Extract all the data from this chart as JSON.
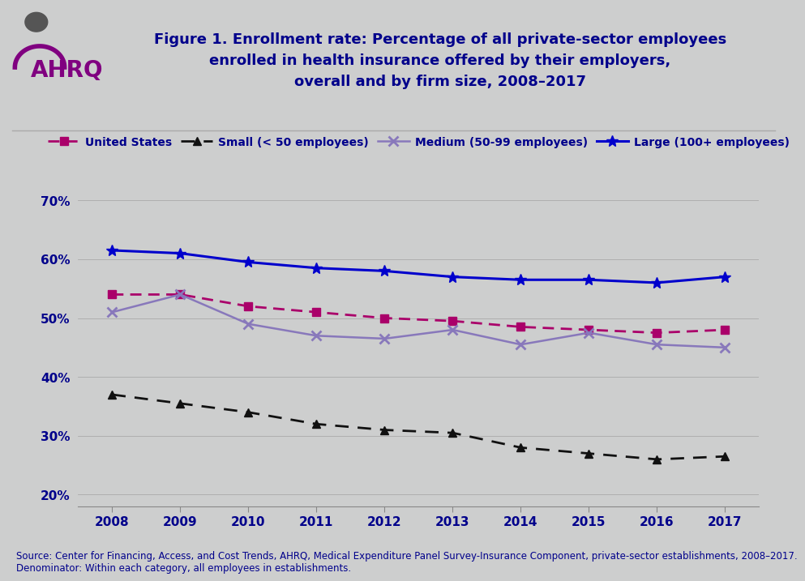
{
  "years": [
    2008,
    2009,
    2010,
    2011,
    2012,
    2013,
    2014,
    2015,
    2016,
    2017
  ],
  "united_states": [
    54.0,
    54.0,
    52.0,
    51.0,
    50.0,
    49.5,
    48.5,
    48.0,
    47.5,
    48.0
  ],
  "small": [
    37.0,
    35.5,
    34.0,
    32.0,
    31.0,
    30.5,
    28.0,
    27.0,
    26.0,
    26.5
  ],
  "medium": [
    51.0,
    54.0,
    49.0,
    47.0,
    46.5,
    48.0,
    45.5,
    47.5,
    45.5,
    45.0
  ],
  "large": [
    61.5,
    61.0,
    59.5,
    58.5,
    58.0,
    57.0,
    56.5,
    56.5,
    56.0,
    57.0
  ],
  "colors": {
    "united_states": "#AA006A",
    "small": "#111111",
    "medium": "#8878BB",
    "large": "#0000CC"
  },
  "title_line1": "Figure 1. Enrollment rate: Percentage of all private-sector employees",
  "title_line2": "enrolled in health insurance offered by their employers,",
  "title_line3": "overall and by firm size, 2008–2017",
  "title_color": "#00008B",
  "legend_labels": [
    "United States",
    "Small (< 50 employees)",
    "Medium (50-99 employees)",
    "Large (100+ employees)"
  ],
  "ylabel_ticks": [
    "20%",
    "30%",
    "40%",
    "50%",
    "60%",
    "70%"
  ],
  "ylabel_values": [
    20,
    30,
    40,
    50,
    60,
    70
  ],
  "ylim": [
    18,
    73
  ],
  "source_text": "Source: Center for Financing, Access, and Cost Trends, AHRQ, Medical Expenditure Panel Survey-Insurance Component, private-sector establishments, 2008–2017.\nDenominator: Within each category, all employees in establishments.",
  "background_color": "#CDCECE",
  "plot_background": "#CDCECE",
  "separator_color": "#AAAAAA"
}
